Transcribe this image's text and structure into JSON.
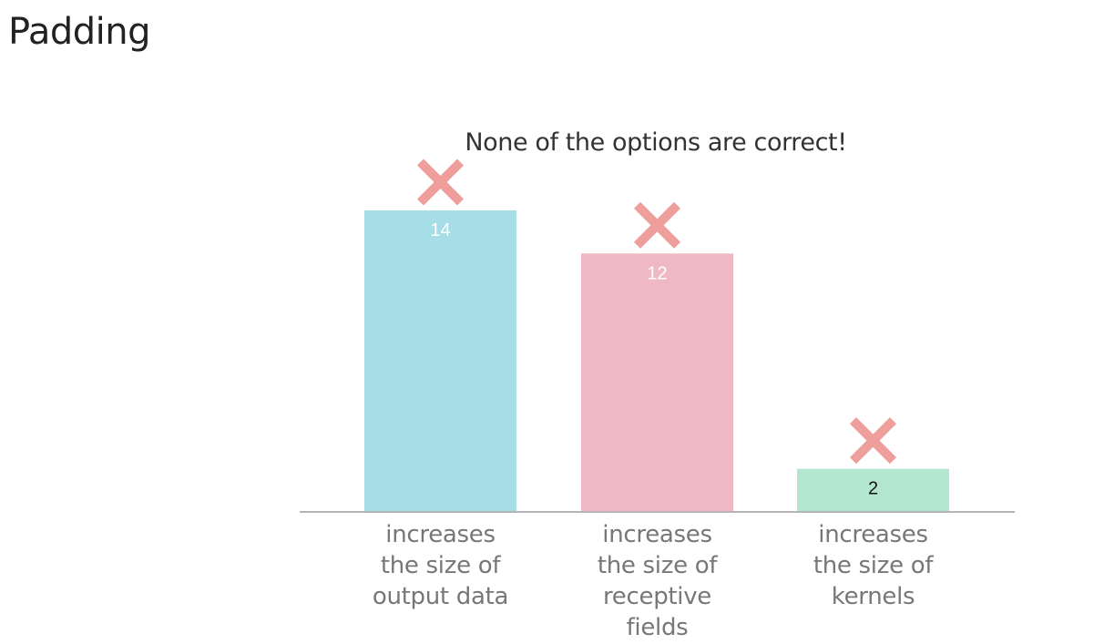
{
  "page": {
    "title": "Padding"
  },
  "chart_data": {
    "type": "bar",
    "title": "None of the options are correct!",
    "categories": [
      "increases the size of output data",
      "increases the size of receptive fields",
      "increases the size of kernels"
    ],
    "category_lines": [
      [
        "increases",
        "the size of",
        "output data"
      ],
      [
        "increases",
        "the size of",
        "receptive",
        "fields"
      ],
      [
        "increases",
        "the size of",
        "kernels"
      ]
    ],
    "values": [
      14,
      12,
      2
    ],
    "colors": [
      "#a6dde6",
      "#f0b8c3",
      "#b2e6cf"
    ],
    "label_colors": [
      "#ffffff",
      "#ffffff",
      "#111111"
    ],
    "marker_color": "#ee9e9b",
    "marker_icon": "x-mark-icon",
    "axis_color": "#b4b4b4",
    "ylim": [
      0,
      14
    ],
    "grid": false,
    "legend": "none",
    "xlabel": "",
    "ylabel": ""
  }
}
